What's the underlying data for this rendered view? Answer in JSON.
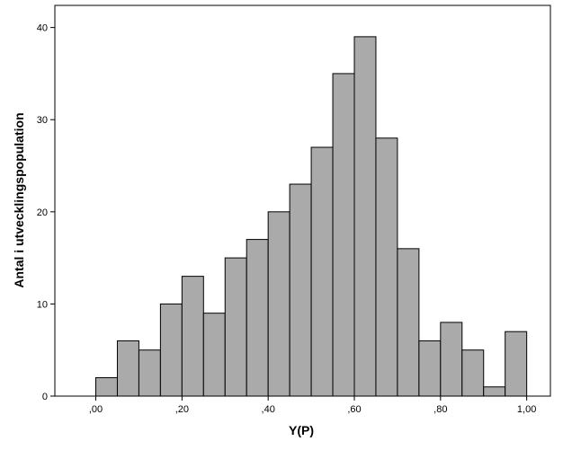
{
  "chart_data": {
    "type": "bar",
    "subtype": "histogram",
    "xlabel": "Y(P)",
    "ylabel": "Antal i utvecklingspopulation",
    "bin_width": 0.05,
    "bin_starts": [
      0.0,
      0.05,
      0.1,
      0.15,
      0.2,
      0.25,
      0.3,
      0.35,
      0.4,
      0.45,
      0.5,
      0.55,
      0.6,
      0.65,
      0.7,
      0.75,
      0.8,
      0.85,
      0.9,
      0.95
    ],
    "values": [
      2,
      6,
      5,
      10,
      13,
      9,
      15,
      17,
      20,
      23,
      27,
      35,
      39,
      28,
      16,
      6,
      8,
      5,
      1,
      7
    ],
    "xlim": [
      -0.095,
      1.055
    ],
    "ylim": [
      0,
      42.4
    ],
    "x_ticks": [
      0.0,
      0.2,
      0.4,
      0.6,
      0.8,
      1.0
    ],
    "x_tick_labels": [
      ",00",
      ",20",
      ",40",
      ",60",
      ",80",
      "1,00"
    ],
    "y_ticks": [
      0,
      10,
      20,
      30,
      40
    ],
    "y_tick_labels": [
      "0",
      "10",
      "20",
      "30",
      "40"
    ],
    "grid": false,
    "bar_color": "#aaaaaa",
    "bar_edge_color": "#000000"
  }
}
